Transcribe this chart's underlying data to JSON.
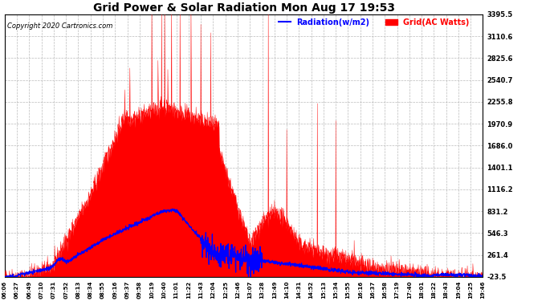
{
  "title": "Grid Power & Solar Radiation Mon Aug 17 19:53",
  "copyright": "Copyright 2020 Cartronics.com",
  "legend_radiation": "Radiation(w/m2)",
  "legend_grid": "Grid(AC Watts)",
  "yticks": [
    3395.5,
    3110.6,
    2825.6,
    2540.7,
    2255.8,
    1970.9,
    1686.0,
    1401.1,
    1116.2,
    831.2,
    546.3,
    261.4,
    -23.5
  ],
  "ymin": -23.5,
  "ymax": 3395.5,
  "background_color": "#ffffff",
  "plot_bg_color": "#ffffff",
  "grid_color": "#aaaaaa",
  "radiation_color": "#0000ff",
  "grid_ac_color": "#ff0000",
  "grid_ac_fill": "#ff0000",
  "xtick_labels": [
    "06:06",
    "06:27",
    "06:49",
    "07:10",
    "07:31",
    "07:52",
    "08:13",
    "08:34",
    "08:55",
    "09:16",
    "09:37",
    "09:58",
    "10:19",
    "10:40",
    "11:01",
    "11:22",
    "11:43",
    "12:04",
    "12:25",
    "12:46",
    "13:07",
    "13:28",
    "13:49",
    "14:10",
    "14:31",
    "14:52",
    "15:13",
    "15:34",
    "15:55",
    "16:16",
    "16:37",
    "16:58",
    "17:19",
    "17:40",
    "18:01",
    "18:22",
    "18:43",
    "19:04",
    "19:25",
    "19:46"
  ],
  "figwidth": 6.9,
  "figheight": 3.75,
  "dpi": 100
}
